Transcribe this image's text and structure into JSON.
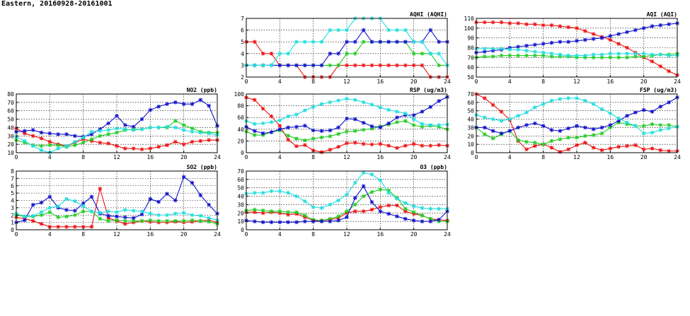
{
  "header": {
    "title": "Eastern, 20160928-20161001"
  },
  "colors": {
    "red": "#ee1111",
    "green": "#22cc22",
    "blue": "#1111cc",
    "cyan": "#22dddd"
  },
  "chart_data": [
    {
      "id": "aqhi",
      "type": "line",
      "title": "AQHI (AQHI)",
      "xlim": [
        0,
        24
      ],
      "ylim": [
        2,
        7
      ],
      "xticks": [
        0,
        4,
        8,
        12,
        16,
        20,
        24
      ],
      "yticks": [
        2,
        3,
        4,
        5,
        6,
        7
      ],
      "grid": true,
      "x": [
        0,
        1,
        2,
        3,
        4,
        5,
        6,
        7,
        8,
        9,
        10,
        11,
        12,
        13,
        14,
        15,
        16,
        17,
        18,
        19,
        20,
        21,
        22,
        23,
        24
      ],
      "series": [
        {
          "color": "red",
          "values": [
            5,
            5,
            4,
            4,
            3,
            3,
            3,
            2,
            2,
            2,
            2,
            3,
            3,
            3,
            3,
            3,
            3,
            3,
            3,
            3,
            3,
            3,
            2,
            2,
            2
          ]
        },
        {
          "color": "green",
          "values": [
            3,
            3,
            3,
            3,
            3,
            3,
            3,
            3,
            3,
            3,
            3,
            3,
            4,
            4,
            5,
            5,
            5,
            5,
            5,
            5,
            4,
            4,
            4,
            3,
            3
          ]
        },
        {
          "color": "blue",
          "values": [
            3,
            3,
            3,
            3,
            3,
            3,
            3,
            3,
            3,
            3,
            4,
            4,
            5,
            5,
            6,
            5,
            5,
            5,
            5,
            5,
            5,
            5,
            6,
            5,
            5
          ]
        },
        {
          "color": "cyan",
          "values": [
            3,
            3,
            3,
            3,
            4,
            4,
            5,
            5,
            5,
            5,
            6,
            6,
            6,
            7,
            7,
            7,
            7,
            6,
            6,
            6,
            5,
            5,
            4,
            4,
            3
          ]
        }
      ]
    },
    {
      "id": "aqi",
      "type": "line",
      "title": "AQI (AQI)",
      "xlim": [
        0,
        24
      ],
      "ylim": [
        50,
        110
      ],
      "xticks": [
        0,
        4,
        8,
        12,
        16,
        20,
        24
      ],
      "yticks": [
        50,
        60,
        70,
        80,
        90,
        100,
        110
      ],
      "grid": true,
      "x": [
        0,
        1,
        2,
        3,
        4,
        5,
        6,
        7,
        8,
        9,
        10,
        11,
        12,
        13,
        14,
        15,
        16,
        17,
        18,
        19,
        20,
        21,
        22,
        23,
        24
      ],
      "series": [
        {
          "color": "red",
          "values": [
            106,
            106,
            106,
            106,
            105,
            105,
            104,
            104,
            103,
            103,
            102,
            101,
            100,
            97,
            94,
            91,
            88,
            84,
            80,
            75,
            70,
            66,
            61,
            56,
            52
          ]
        },
        {
          "color": "green",
          "values": [
            70,
            71,
            71,
            72,
            72,
            72,
            72,
            72,
            72,
            71,
            71,
            71,
            70,
            70,
            70,
            70,
            70,
            70,
            70,
            71,
            71,
            72,
            73,
            73,
            74
          ]
        },
        {
          "color": "blue",
          "values": [
            75,
            76,
            77,
            78,
            80,
            81,
            82,
            83,
            84,
            85,
            86,
            86,
            87,
            88,
            89,
            90,
            92,
            94,
            96,
            98,
            100,
            102,
            103,
            104,
            105
          ]
        },
        {
          "color": "cyan",
          "values": [
            79,
            79,
            79,
            79,
            78,
            78,
            77,
            76,
            75,
            74,
            73,
            72,
            72,
            72,
            73,
            73,
            74,
            74,
            74,
            74,
            74,
            73,
            73,
            72,
            72
          ]
        }
      ]
    },
    {
      "id": "no2",
      "type": "line",
      "title": "NO2 (ppb)",
      "xlim": [
        0,
        24
      ],
      "ylim": [
        10,
        80
      ],
      "xticks": [
        0,
        4,
        8,
        12,
        16,
        20,
        24
      ],
      "yticks": [
        10,
        20,
        30,
        40,
        50,
        60,
        70,
        80
      ],
      "grid": true,
      "x": [
        0,
        1,
        2,
        3,
        4,
        5,
        6,
        7,
        8,
        9,
        10,
        11,
        12,
        13,
        14,
        15,
        16,
        17,
        18,
        19,
        20,
        21,
        22,
        23,
        24
      ],
      "series": [
        {
          "color": "red",
          "values": [
            39,
            33,
            30,
            27,
            23,
            20,
            18,
            22,
            26,
            24,
            22,
            21,
            18,
            15,
            15,
            14,
            15,
            17,
            19,
            23,
            20,
            23,
            24,
            25,
            25
          ]
        },
        {
          "color": "green",
          "values": [
            25,
            22,
            19,
            18,
            19,
            19,
            17,
            19,
            22,
            26,
            30,
            32,
            34,
            37,
            38,
            38,
            40,
            40,
            40,
            48,
            43,
            39,
            35,
            34,
            34
          ]
        },
        {
          "color": "blue",
          "values": [
            35,
            36,
            37,
            34,
            33,
            32,
            32,
            30,
            29,
            32,
            38,
            45,
            54,
            43,
            41,
            50,
            61,
            65,
            68,
            70,
            68,
            68,
            73,
            66,
            42
          ]
        },
        {
          "color": "cyan",
          "values": [
            29,
            24,
            18,
            13,
            10,
            15,
            18,
            23,
            28,
            35,
            36,
            37,
            39,
            38,
            37,
            38,
            40,
            40,
            41,
            40,
            37,
            35,
            34,
            33,
            31
          ]
        }
      ]
    },
    {
      "id": "rsp",
      "type": "line",
      "title": "RSP (ug/m3)",
      "xlim": [
        0,
        24
      ],
      "ylim": [
        0,
        100
      ],
      "xticks": [
        0,
        4,
        8,
        12,
        16,
        20,
        24
      ],
      "yticks": [
        0,
        20,
        40,
        60,
        80,
        100
      ],
      "grid": true,
      "x": [
        0,
        1,
        2,
        3,
        4,
        5,
        6,
        7,
        8,
        9,
        10,
        11,
        12,
        13,
        14,
        15,
        16,
        17,
        18,
        19,
        20,
        21,
        22,
        23,
        24
      ],
      "series": [
        {
          "color": "red",
          "values": [
            94,
            90,
            75,
            62,
            46,
            22,
            11,
            13,
            4,
            1,
            5,
            10,
            16,
            17,
            15,
            14,
            15,
            12,
            8,
            12,
            15,
            12,
            12,
            13,
            12
          ]
        },
        {
          "color": "green",
          "values": [
            36,
            30,
            30,
            35,
            38,
            29,
            24,
            21,
            24,
            26,
            28,
            32,
            36,
            37,
            39,
            41,
            45,
            48,
            52,
            54,
            47,
            44,
            46,
            44,
            40
          ]
        },
        {
          "color": "blue",
          "values": [
            44,
            37,
            33,
            35,
            40,
            43,
            44,
            46,
            38,
            37,
            38,
            43,
            58,
            57,
            51,
            45,
            43,
            50,
            60,
            64,
            64,
            70,
            78,
            88,
            95
          ]
        },
        {
          "color": "cyan",
          "values": [
            54,
            49,
            50,
            52,
            55,
            62,
            65,
            72,
            78,
            83,
            86,
            89,
            92,
            90,
            86,
            82,
            77,
            73,
            70,
            67,
            57,
            49,
            47,
            47,
            48
          ]
        }
      ]
    },
    {
      "id": "fsp",
      "type": "line",
      "title": "FSP (ug/m3)",
      "xlim": [
        0,
        24
      ],
      "ylim": [
        0,
        70
      ],
      "xticks": [
        0,
        4,
        8,
        12,
        16,
        20,
        24
      ],
      "yticks": [
        0,
        10,
        20,
        30,
        40,
        50,
        60,
        70
      ],
      "grid": true,
      "x": [
        0,
        1,
        2,
        3,
        4,
        5,
        6,
        7,
        8,
        9,
        10,
        11,
        12,
        13,
        14,
        15,
        16,
        17,
        18,
        19,
        20,
        21,
        22,
        23,
        24
      ],
      "series": [
        {
          "color": "red",
          "values": [
            70,
            65,
            57,
            49,
            39,
            14,
            4,
            8,
            10,
            6,
            1,
            4,
            9,
            12,
            6,
            3,
            5,
            7,
            8,
            9,
            4,
            5,
            3,
            2,
            2
          ]
        },
        {
          "color": "green",
          "values": [
            30,
            22,
            17,
            22,
            26,
            15,
            13,
            12,
            10,
            14,
            16,
            18,
            18,
            20,
            21,
            23,
            30,
            36,
            34,
            32,
            32,
            34,
            33,
            33,
            31
          ]
        },
        {
          "color": "blue",
          "values": [
            30,
            30,
            26,
            23,
            26,
            30,
            33,
            35,
            32,
            27,
            26,
            29,
            32,
            30,
            28,
            30,
            33,
            38,
            44,
            48,
            51,
            49,
            55,
            60,
            66
          ]
        },
        {
          "color": "cyan",
          "values": [
            45,
            42,
            40,
            38,
            40,
            44,
            48,
            54,
            58,
            62,
            64,
            65,
            65,
            62,
            58,
            52,
            47,
            41,
            36,
            32,
            23,
            24,
            27,
            29,
            31
          ]
        }
      ]
    },
    {
      "id": "so2",
      "type": "line",
      "title": "SO2 (ppb)",
      "xlim": [
        0,
        24
      ],
      "ylim": [
        0,
        8
      ],
      "xticks": [
        0,
        4,
        8,
        12,
        16,
        20,
        24
      ],
      "yticks": [
        0,
        1,
        2,
        3,
        4,
        5,
        6,
        7,
        8
      ],
      "grid": true,
      "x": [
        0,
        1,
        2,
        3,
        4,
        5,
        6,
        7,
        8,
        9,
        10,
        11,
        12,
        13,
        14,
        15,
        16,
        17,
        18,
        19,
        20,
        21,
        22,
        23,
        24
      ],
      "series": [
        {
          "color": "red",
          "values": [
            1.7,
            1.5,
            1.2,
            0.8,
            0.4,
            0.4,
            0.4,
            0.4,
            0.4,
            0.4,
            5.6,
            1.6,
            1.2,
            0.8,
            1.0,
            1.2,
            1.1,
            1.0,
            1.0,
            1.1,
            1.0,
            1.1,
            1.2,
            1.3,
            1.0
          ]
        },
        {
          "color": "green",
          "values": [
            2.0,
            1.8,
            1.8,
            2.0,
            2.4,
            1.7,
            1.8,
            2.0,
            2.5,
            2.5,
            1.5,
            1.2,
            1.3,
            1.2,
            1.2,
            1.2,
            1.3,
            1.2,
            1.2,
            1.2,
            1.2,
            1.3,
            1.2,
            1.1,
            0.8
          ]
        },
        {
          "color": "blue",
          "values": [
            1.0,
            1.3,
            3.4,
            3.7,
            4.5,
            3.0,
            2.7,
            2.6,
            3.6,
            4.5,
            2.2,
            1.9,
            1.8,
            1.7,
            1.6,
            2.1,
            4.2,
            3.8,
            4.9,
            4.0,
            7.2,
            6.4,
            4.7,
            3.4,
            2.2
          ]
        },
        {
          "color": "cyan",
          "values": [
            2.2,
            1.8,
            1.9,
            2.4,
            3.0,
            3.2,
            4.2,
            3.9,
            3.2,
            2.5,
            2.3,
            2.5,
            2.4,
            2.7,
            2.6,
            2.5,
            2.2,
            2.0,
            2.0,
            2.2,
            2.3,
            2.0,
            1.9,
            1.6,
            1.3
          ]
        }
      ]
    },
    {
      "id": "o3",
      "type": "line",
      "title": "O3 (ppb)",
      "xlim": [
        0,
        24
      ],
      "ylim": [
        0,
        70
      ],
      "xticks": [
        0,
        4,
        8,
        12,
        16,
        20,
        24
      ],
      "yticks": [
        0,
        10,
        20,
        30,
        40,
        50,
        60,
        70
      ],
      "grid": true,
      "x": [
        0,
        1,
        2,
        3,
        4,
        5,
        6,
        7,
        8,
        9,
        10,
        11,
        12,
        13,
        14,
        15,
        16,
        17,
        18,
        19,
        20,
        21,
        22,
        23,
        24
      ],
      "series": [
        {
          "color": "red",
          "values": [
            21,
            21,
            20,
            21,
            20,
            18,
            19,
            15,
            11,
            11,
            12,
            14,
            20,
            22,
            22,
            24,
            27,
            29,
            29,
            22,
            19,
            17,
            13,
            12,
            11
          ]
        },
        {
          "color": "green",
          "values": [
            23,
            24,
            23,
            22,
            22,
            21,
            21,
            17,
            12,
            11,
            13,
            16,
            22,
            30,
            40,
            45,
            48,
            47,
            38,
            25,
            21,
            17,
            13,
            10,
            10
          ]
        },
        {
          "color": "blue",
          "values": [
            11,
            10,
            9,
            9,
            9,
            9,
            9,
            10,
            10,
            10,
            10,
            11,
            15,
            38,
            52,
            33,
            22,
            19,
            16,
            13,
            11,
            10,
            10,
            12,
            22
          ]
        },
        {
          "color": "cyan",
          "values": [
            43,
            44,
            44,
            46,
            46,
            44,
            40,
            34,
            27,
            26,
            30,
            35,
            42,
            56,
            68,
            66,
            59,
            44,
            37,
            32,
            28,
            26,
            25,
            25,
            25
          ]
        }
      ]
    }
  ]
}
